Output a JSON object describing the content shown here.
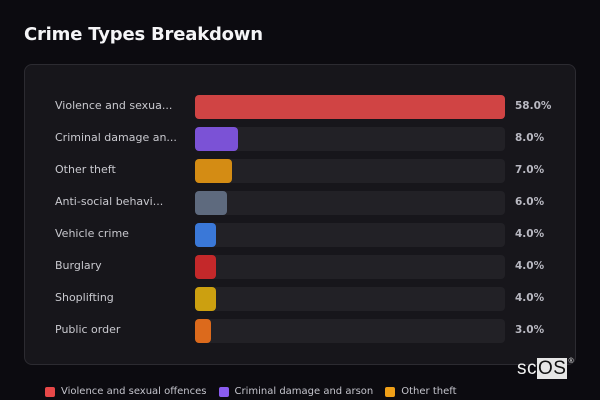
{
  "title": "Crime Types Breakdown",
  "chart_data": {
    "type": "bar",
    "orientation": "horizontal",
    "title": "Crime Types Breakdown",
    "categories": [
      "Violence and sexual offences",
      "Criminal damage and arson",
      "Other theft",
      "Anti-social behaviour",
      "Vehicle crime",
      "Burglary",
      "Shoplifting",
      "Public order"
    ],
    "display_labels": [
      "Violence and sexua...",
      "Criminal damage an...",
      "Other theft",
      "Anti-social behavi...",
      "Vehicle crime",
      "Burglary",
      "Shoplifting",
      "Public order"
    ],
    "values": [
      58.0,
      8.0,
      7.0,
      6.0,
      4.0,
      4.0,
      4.0,
      3.0
    ],
    "value_labels": [
      "58.0%",
      "8.0%",
      "7.0%",
      "6.0%",
      "4.0%",
      "4.0%",
      "4.0%",
      "3.0%"
    ],
    "colors": [
      "#d04444",
      "#7b52d6",
      "#d48c14",
      "#5e6a7e",
      "#3a78d8",
      "#c4282a",
      "#cca010",
      "#dc6a1c"
    ],
    "xlabel": "",
    "ylabel": "",
    "xlim": [
      0,
      58
    ],
    "grid": false,
    "legend_position": "bottom"
  },
  "legend": [
    {
      "label": "Violence and sexual offences",
      "color": "#e84848"
    },
    {
      "label": "Criminal damage and arson",
      "color": "#8a5cf0"
    },
    {
      "label": "Other theft",
      "color": "#f0a018"
    }
  ],
  "watermark": {
    "prefix": "sc",
    "boxed": "OS",
    "mark": "®"
  }
}
